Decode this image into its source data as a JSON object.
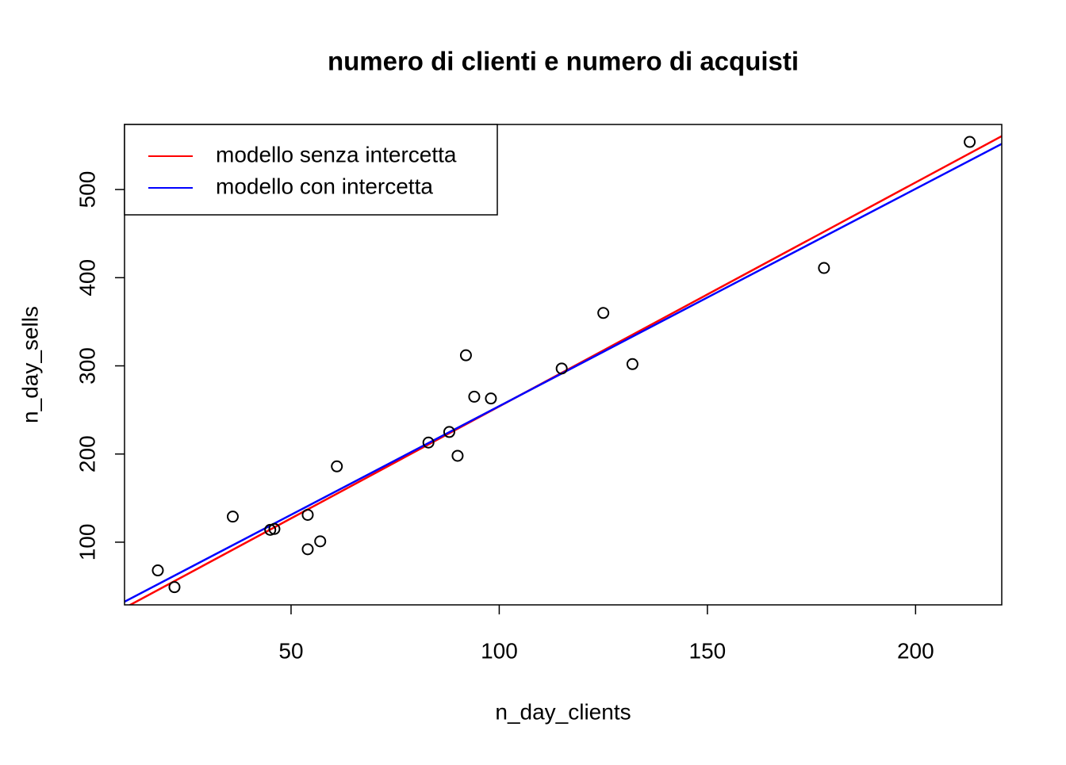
{
  "chart_data": {
    "type": "scatter",
    "title": "numero di clienti e numero di acquisti",
    "x_label": "n_day_clients",
    "y_label": "n_day_sells",
    "x": [
      18,
      22,
      36,
      45,
      46,
      54,
      54,
      57,
      61,
      83,
      88,
      90,
      92,
      94,
      98,
      115,
      125,
      132,
      178,
      213
    ],
    "values": [
      68,
      49,
      129,
      114,
      115,
      131,
      92,
      101,
      186,
      213,
      225,
      198,
      312,
      265,
      263,
      297,
      360,
      302,
      411,
      554
    ],
    "point_color": "#000000",
    "series": [
      {
        "name": "modello senza intercetta",
        "color": "#ff0000",
        "x": [
          0,
          220.7
        ],
        "values": [
          0,
          560.6
        ]
      },
      {
        "name": "modello con intercetta",
        "color": "#0000ff",
        "x": [
          10,
          220.7
        ],
        "values": [
          32.5,
          551.8
        ]
      }
    ],
    "xlim": [
      10,
      220.7
    ],
    "ylim": [
      28.9,
      573.8
    ],
    "xticks": [
      50,
      100,
      150,
      200
    ],
    "yticks": [
      100,
      200,
      300,
      400,
      500
    ],
    "legend": "top-left"
  }
}
